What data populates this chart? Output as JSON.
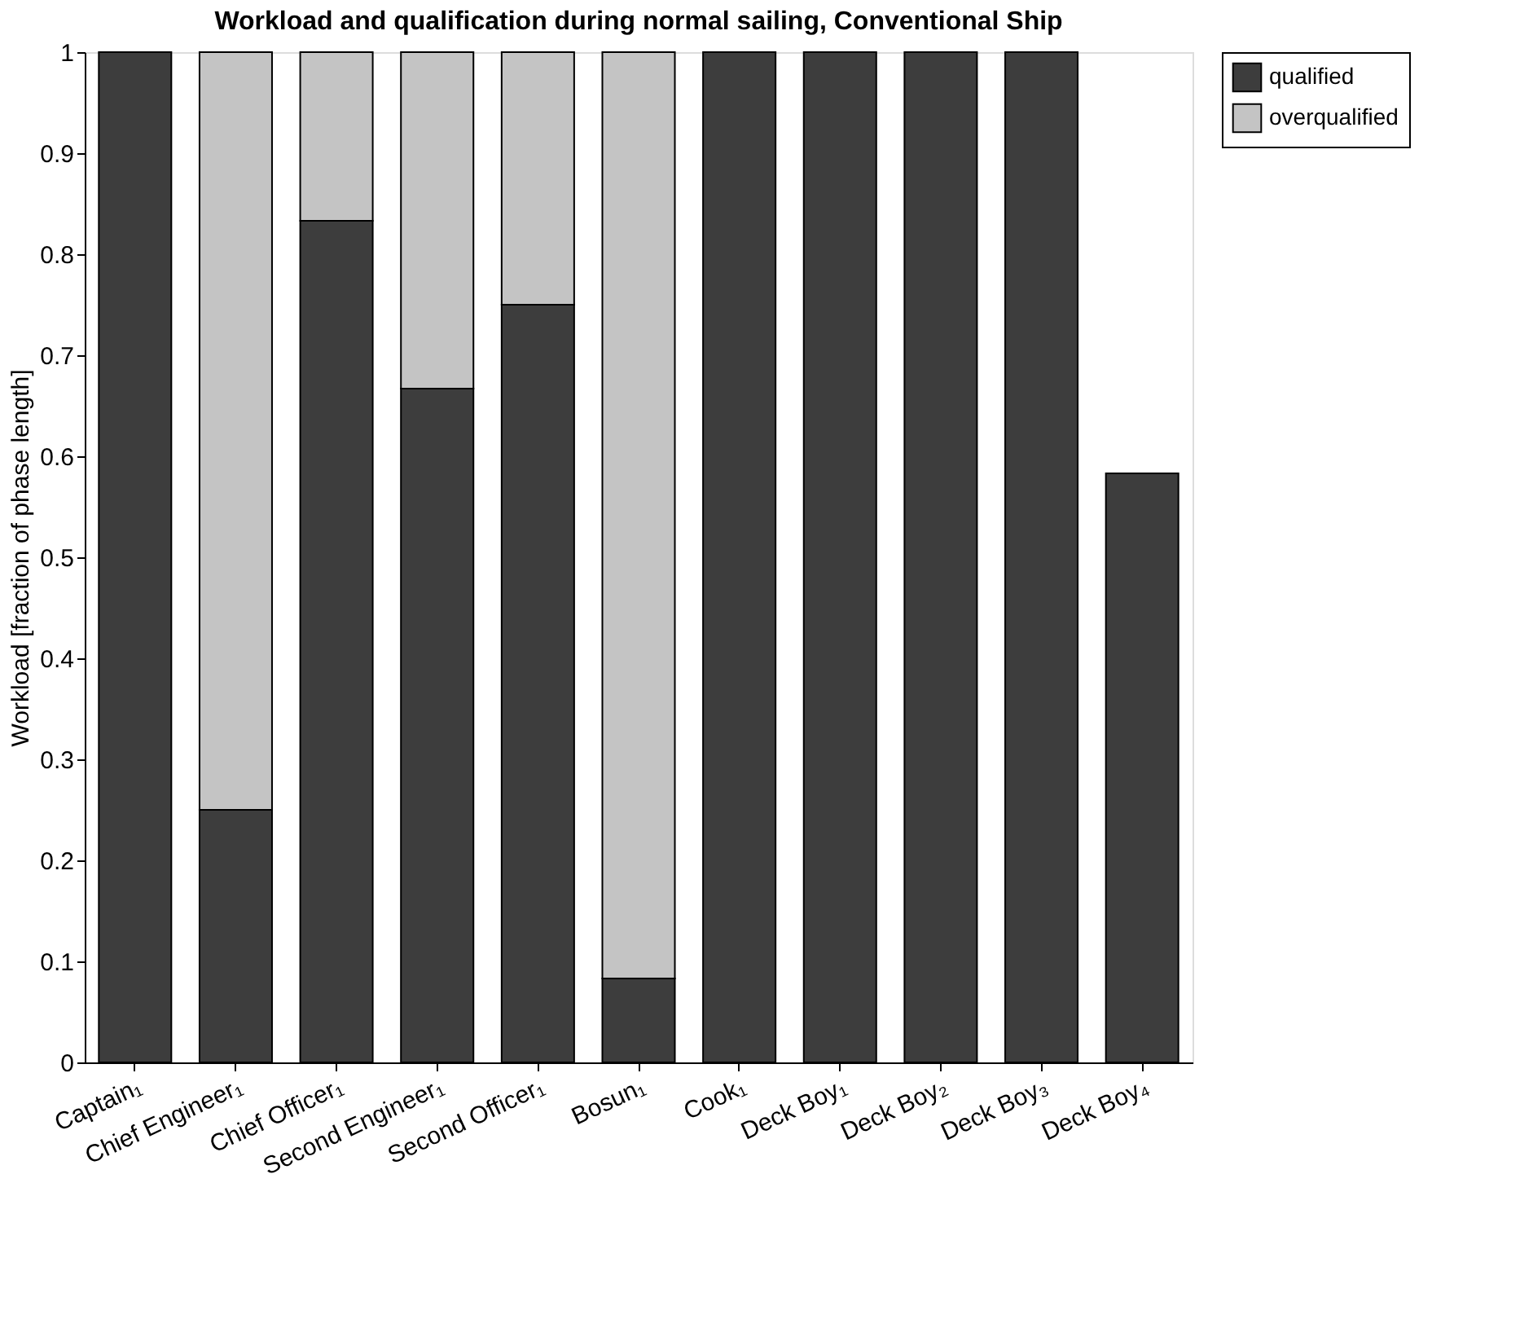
{
  "chart_data": {
    "type": "bar",
    "title": "Workload and qualification during normal sailing, Conventional Ship",
    "ylabel": "Workload [fraction of phase length]",
    "categories": [
      "Captain₁",
      "Chief Engineer₁",
      "Chief Officer₁",
      "Second Engineer₁",
      "Second Officer₁",
      "Bosun₁",
      "Cook₁",
      "Deck Boy₁",
      "Deck Boy₂",
      "Deck Boy₃",
      "Deck Boy₄"
    ],
    "stacked": true,
    "series": [
      {
        "name": "qualified",
        "color": "#3d3d3d",
        "values": [
          1,
          0.25,
          0.833,
          0.667,
          0.75,
          0.083,
          1,
          1,
          1,
          1,
          0.583
        ]
      },
      {
        "name": "overqualified",
        "color": "#c4c4c4",
        "values": [
          null,
          0.75,
          0.167,
          0.333,
          0.25,
          0.917,
          null,
          null,
          null,
          null,
          null
        ]
      }
    ],
    "ylim": [
      0,
      1
    ],
    "yticks": [
      0,
      0.1,
      0.2,
      0.3,
      0.4,
      0.5,
      0.6,
      0.7,
      0.8,
      0.9,
      1
    ],
    "grid": false,
    "legend": "top right"
  }
}
